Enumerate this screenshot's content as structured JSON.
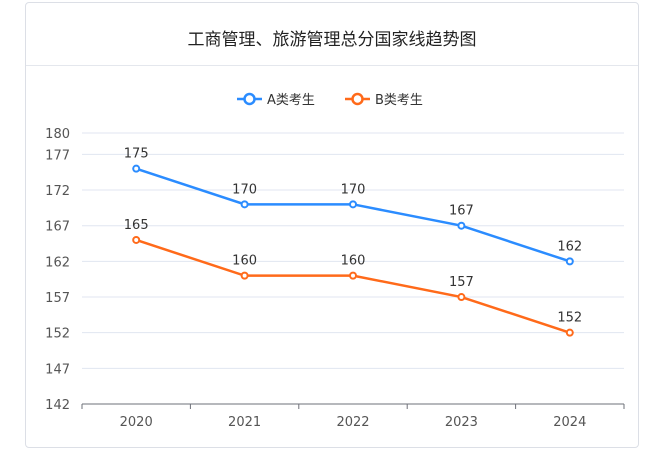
{
  "chart_data": {
    "type": "line",
    "title": "工商管理、旅游管理总分国家线趋势图",
    "categories": [
      "2020",
      "2021",
      "2022",
      "2023",
      "2024"
    ],
    "yticks": [
      142,
      147,
      152,
      157,
      162,
      167,
      172,
      177,
      180
    ],
    "ylim": [
      142,
      180
    ],
    "grid": true,
    "legend_position": "top-center",
    "series": [
      {
        "name": "A类考生",
        "values": [
          175,
          170,
          170,
          167,
          162
        ],
        "color": "#2b8cff"
      },
      {
        "name": "B类考生",
        "values": [
          165,
          160,
          160,
          157,
          152
        ],
        "color": "#ff6a1a"
      }
    ]
  }
}
